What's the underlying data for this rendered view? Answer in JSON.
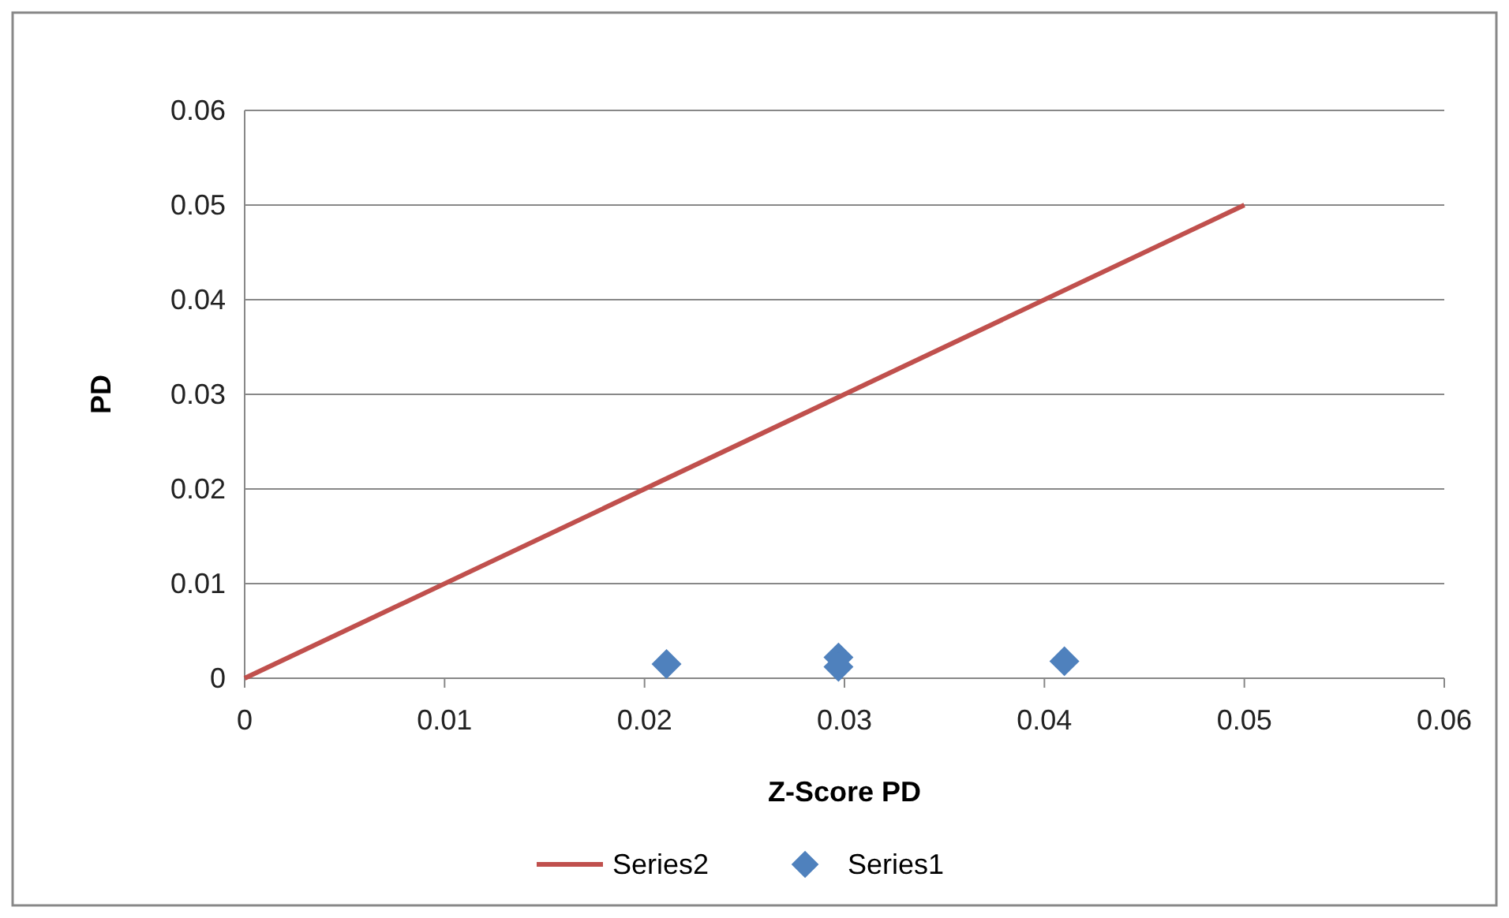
{
  "chart_data": {
    "type": "scatter",
    "xlabel": "Z-Score PD",
    "ylabel": "PD",
    "xlim": [
      0,
      0.06
    ],
    "xticks": [
      0,
      0.01,
      0.02,
      0.03,
      0.04,
      0.05,
      0.06
    ],
    "ylim": [
      0,
      0.06
    ],
    "yticks": [
      0,
      0.01,
      0.02,
      0.03,
      0.04,
      0.05,
      0.06
    ],
    "grid": "y",
    "legend": "bottom",
    "series": [
      {
        "name": "Series2",
        "type": "line",
        "marker": "none",
        "color": "#c0504d",
        "x": [
          0,
          0.05
        ],
        "values": [
          0,
          0.05
        ]
      },
      {
        "name": "Series1",
        "marker": "diamond",
        "color": "#4f81bd",
        "x": [
          0.0211,
          0.0297,
          0.0297,
          0.041
        ],
        "values": [
          0.0015,
          0.0022,
          0.0012,
          0.0018
        ]
      }
    ]
  }
}
